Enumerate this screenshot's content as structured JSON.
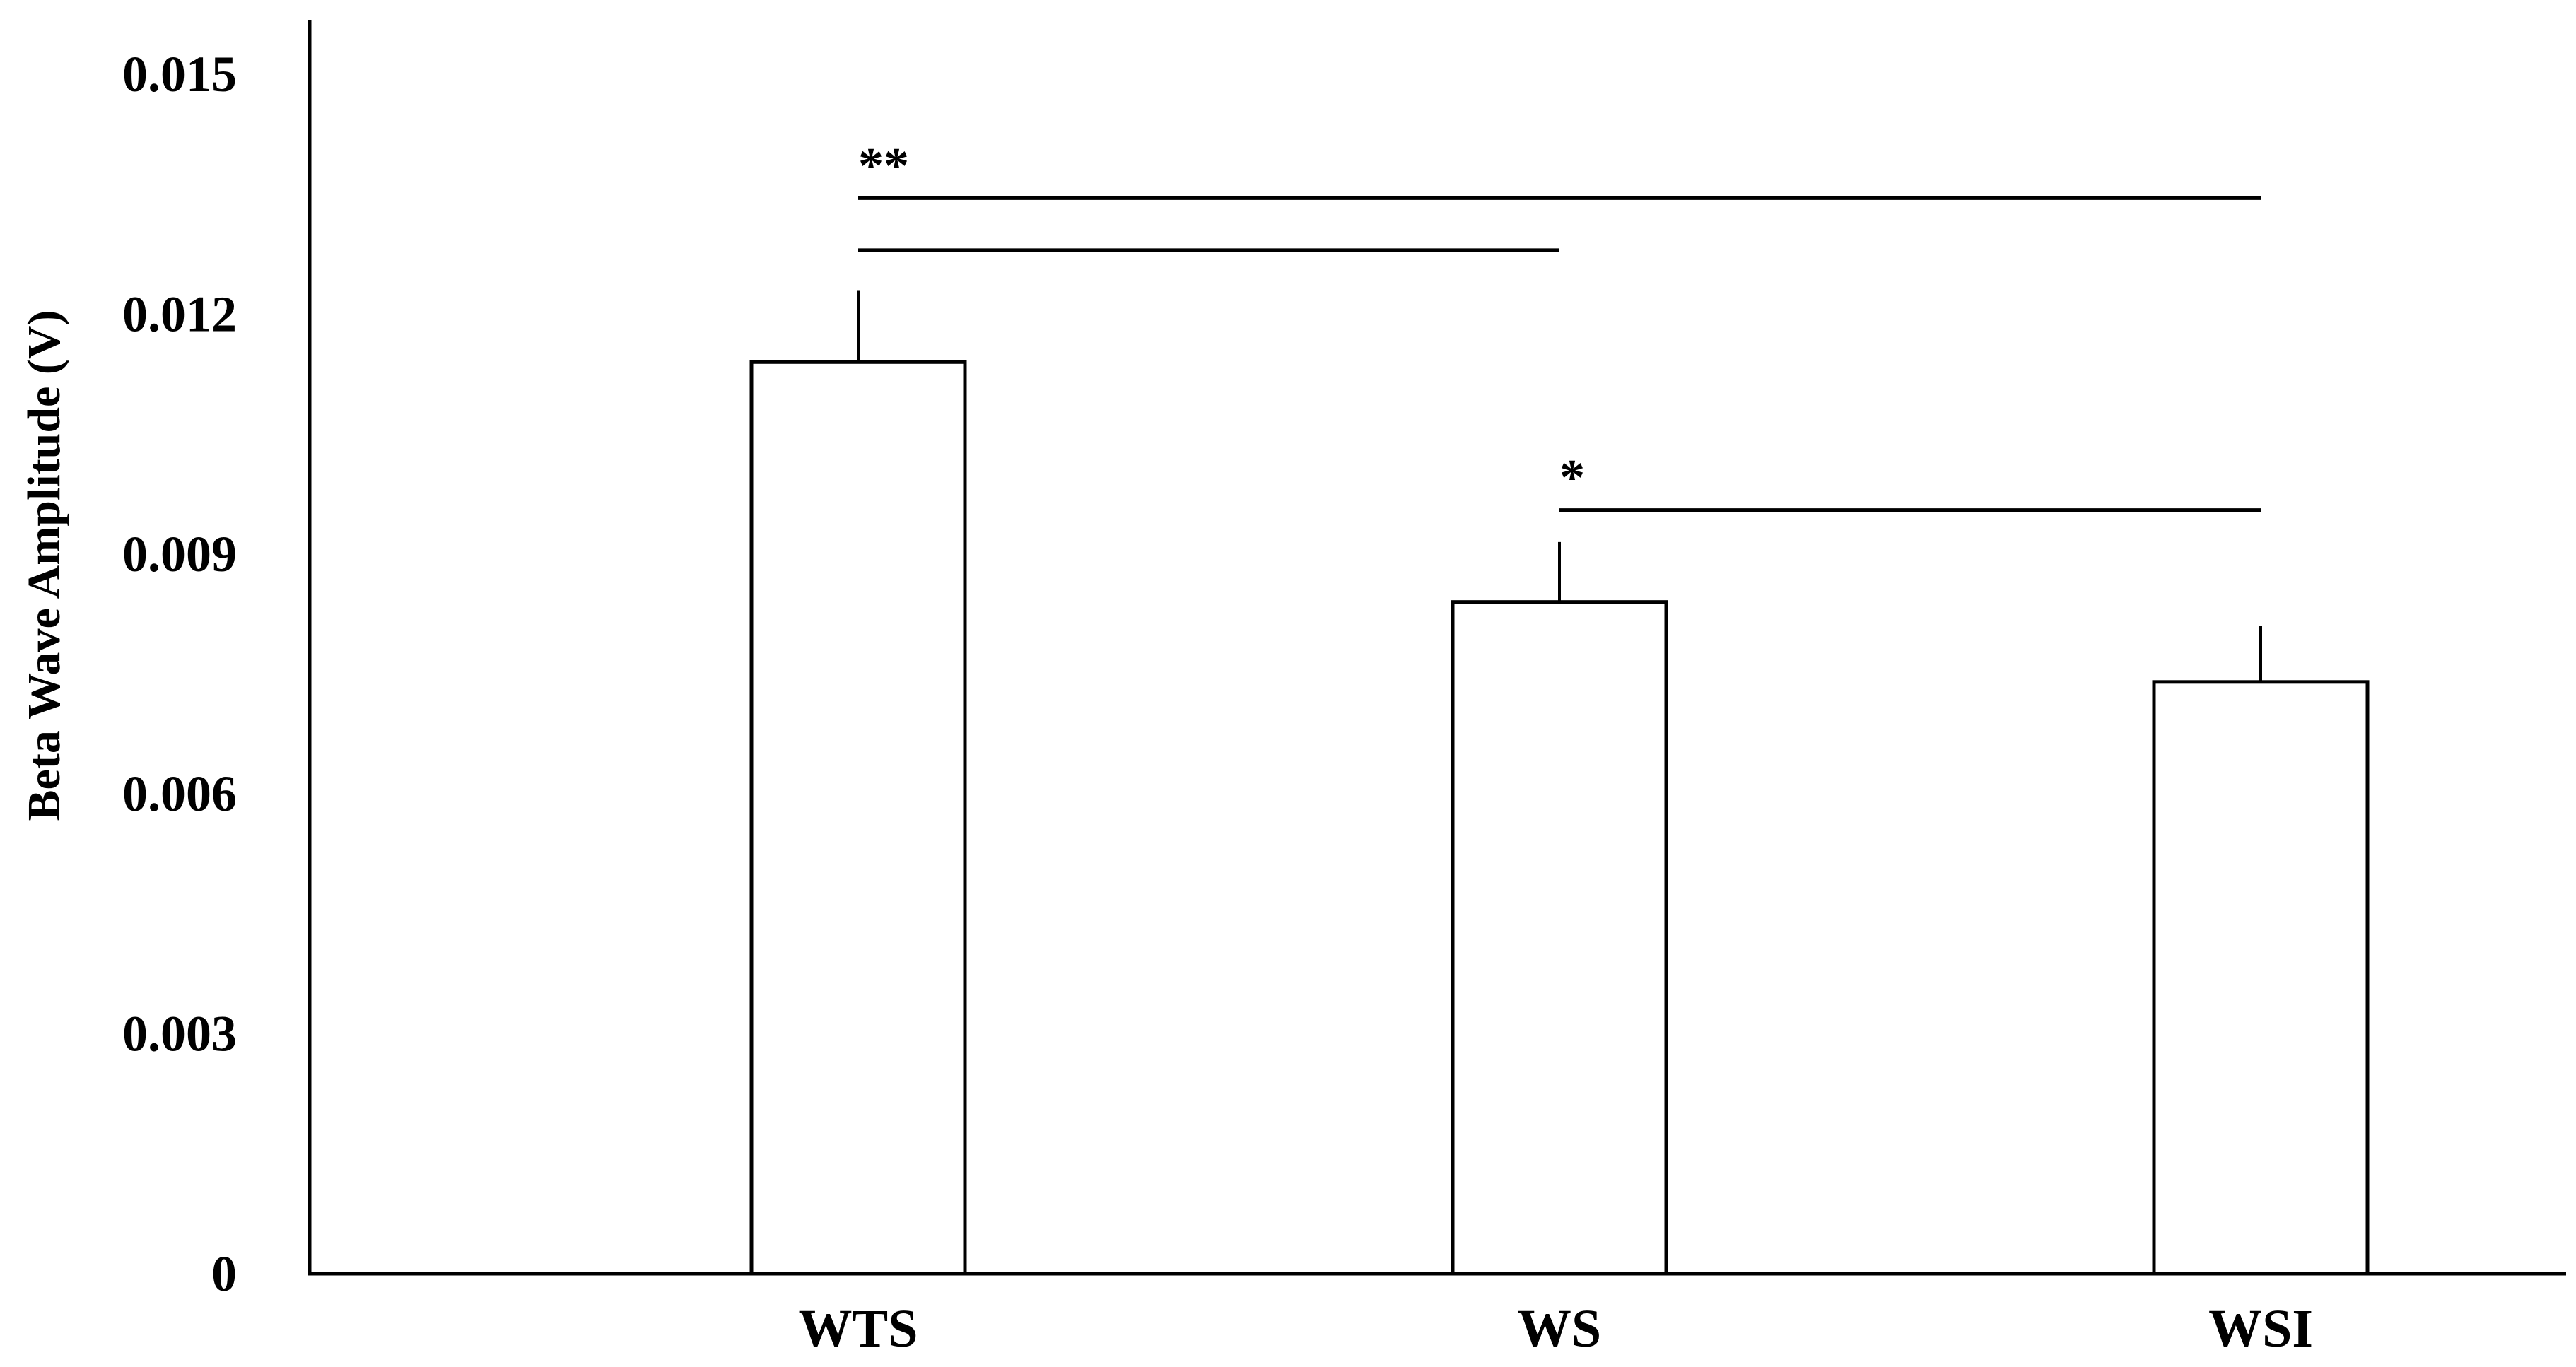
{
  "chart_data": {
    "type": "bar",
    "title": "",
    "xlabel": "",
    "ylabel": "Beta Wave Amplitude (V)",
    "ylim": [
      0,
      0.0155
    ],
    "yticks": [
      "0",
      "0.003",
      "0.006",
      "0.009",
      "0.012",
      "0.015"
    ],
    "ytick_values": [
      0,
      0.003,
      0.006,
      0.009,
      0.012,
      0.015
    ],
    "categories": [
      "WTS",
      "WS",
      "WSI"
    ],
    "values": [
      0.0114,
      0.0084,
      0.0074
    ],
    "error_upper": [
      0.0009,
      0.00075,
      0.0007
    ],
    "grid": false,
    "legend": "none",
    "bar_fill": "#ffffff",
    "bar_stroke": "#000000",
    "significance": [
      {
        "from": "WTS",
        "to": "WSI",
        "label": "**",
        "level": 0.01345
      },
      {
        "from": "WTS",
        "to": "WS",
        "label": "",
        "level": 0.0128
      },
      {
        "from": "WS",
        "to": "WSI",
        "label": "*",
        "level": 0.00955
      }
    ]
  }
}
